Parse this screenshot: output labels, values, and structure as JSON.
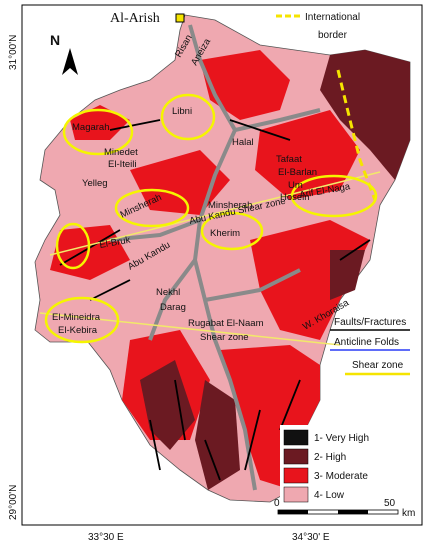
{
  "header": {
    "city": "Al-Arish",
    "border_legend": [
      "International",
      "border"
    ],
    "north": "N"
  },
  "coordinates": {
    "lat_top": "31°00'N",
    "lat_bottom": "29°00'N",
    "lon_left": "33°30 E",
    "lon_right": "34°30' E"
  },
  "places": [
    "Risan",
    "Aneiza",
    "Magarah",
    "Libni",
    "Minedet",
    "El-Iteili",
    "Halal",
    "Yelleg",
    "Minsherah",
    "Minsherah",
    "Abu Kandu Shear zone",
    "Tafaat",
    "El-Barlan",
    "Um",
    "Hosein",
    "Arif El-Naga",
    "El-Bruk",
    "Kherim",
    "Abu Kandu",
    "Nekhl",
    "Darag",
    "W. Khoraisa",
    "El-Mineidra",
    "El-Kebira",
    "Rugabat El-Naam",
    "Shear zone"
  ],
  "structures_legend": [
    "Faults/Fractures",
    "Anticline Folds",
    "Shear zone"
  ],
  "classes": [
    {
      "label": "1- Very High",
      "color": "#111111"
    },
    {
      "label": "2- High",
      "color": "#6b1a22"
    },
    {
      "label": "3- Moderate",
      "color": "#e8141c"
    },
    {
      "label": "4- Low",
      "color": "#efa8b0"
    }
  ],
  "scale": {
    "start": "0",
    "end": "50",
    "unit": "km"
  }
}
